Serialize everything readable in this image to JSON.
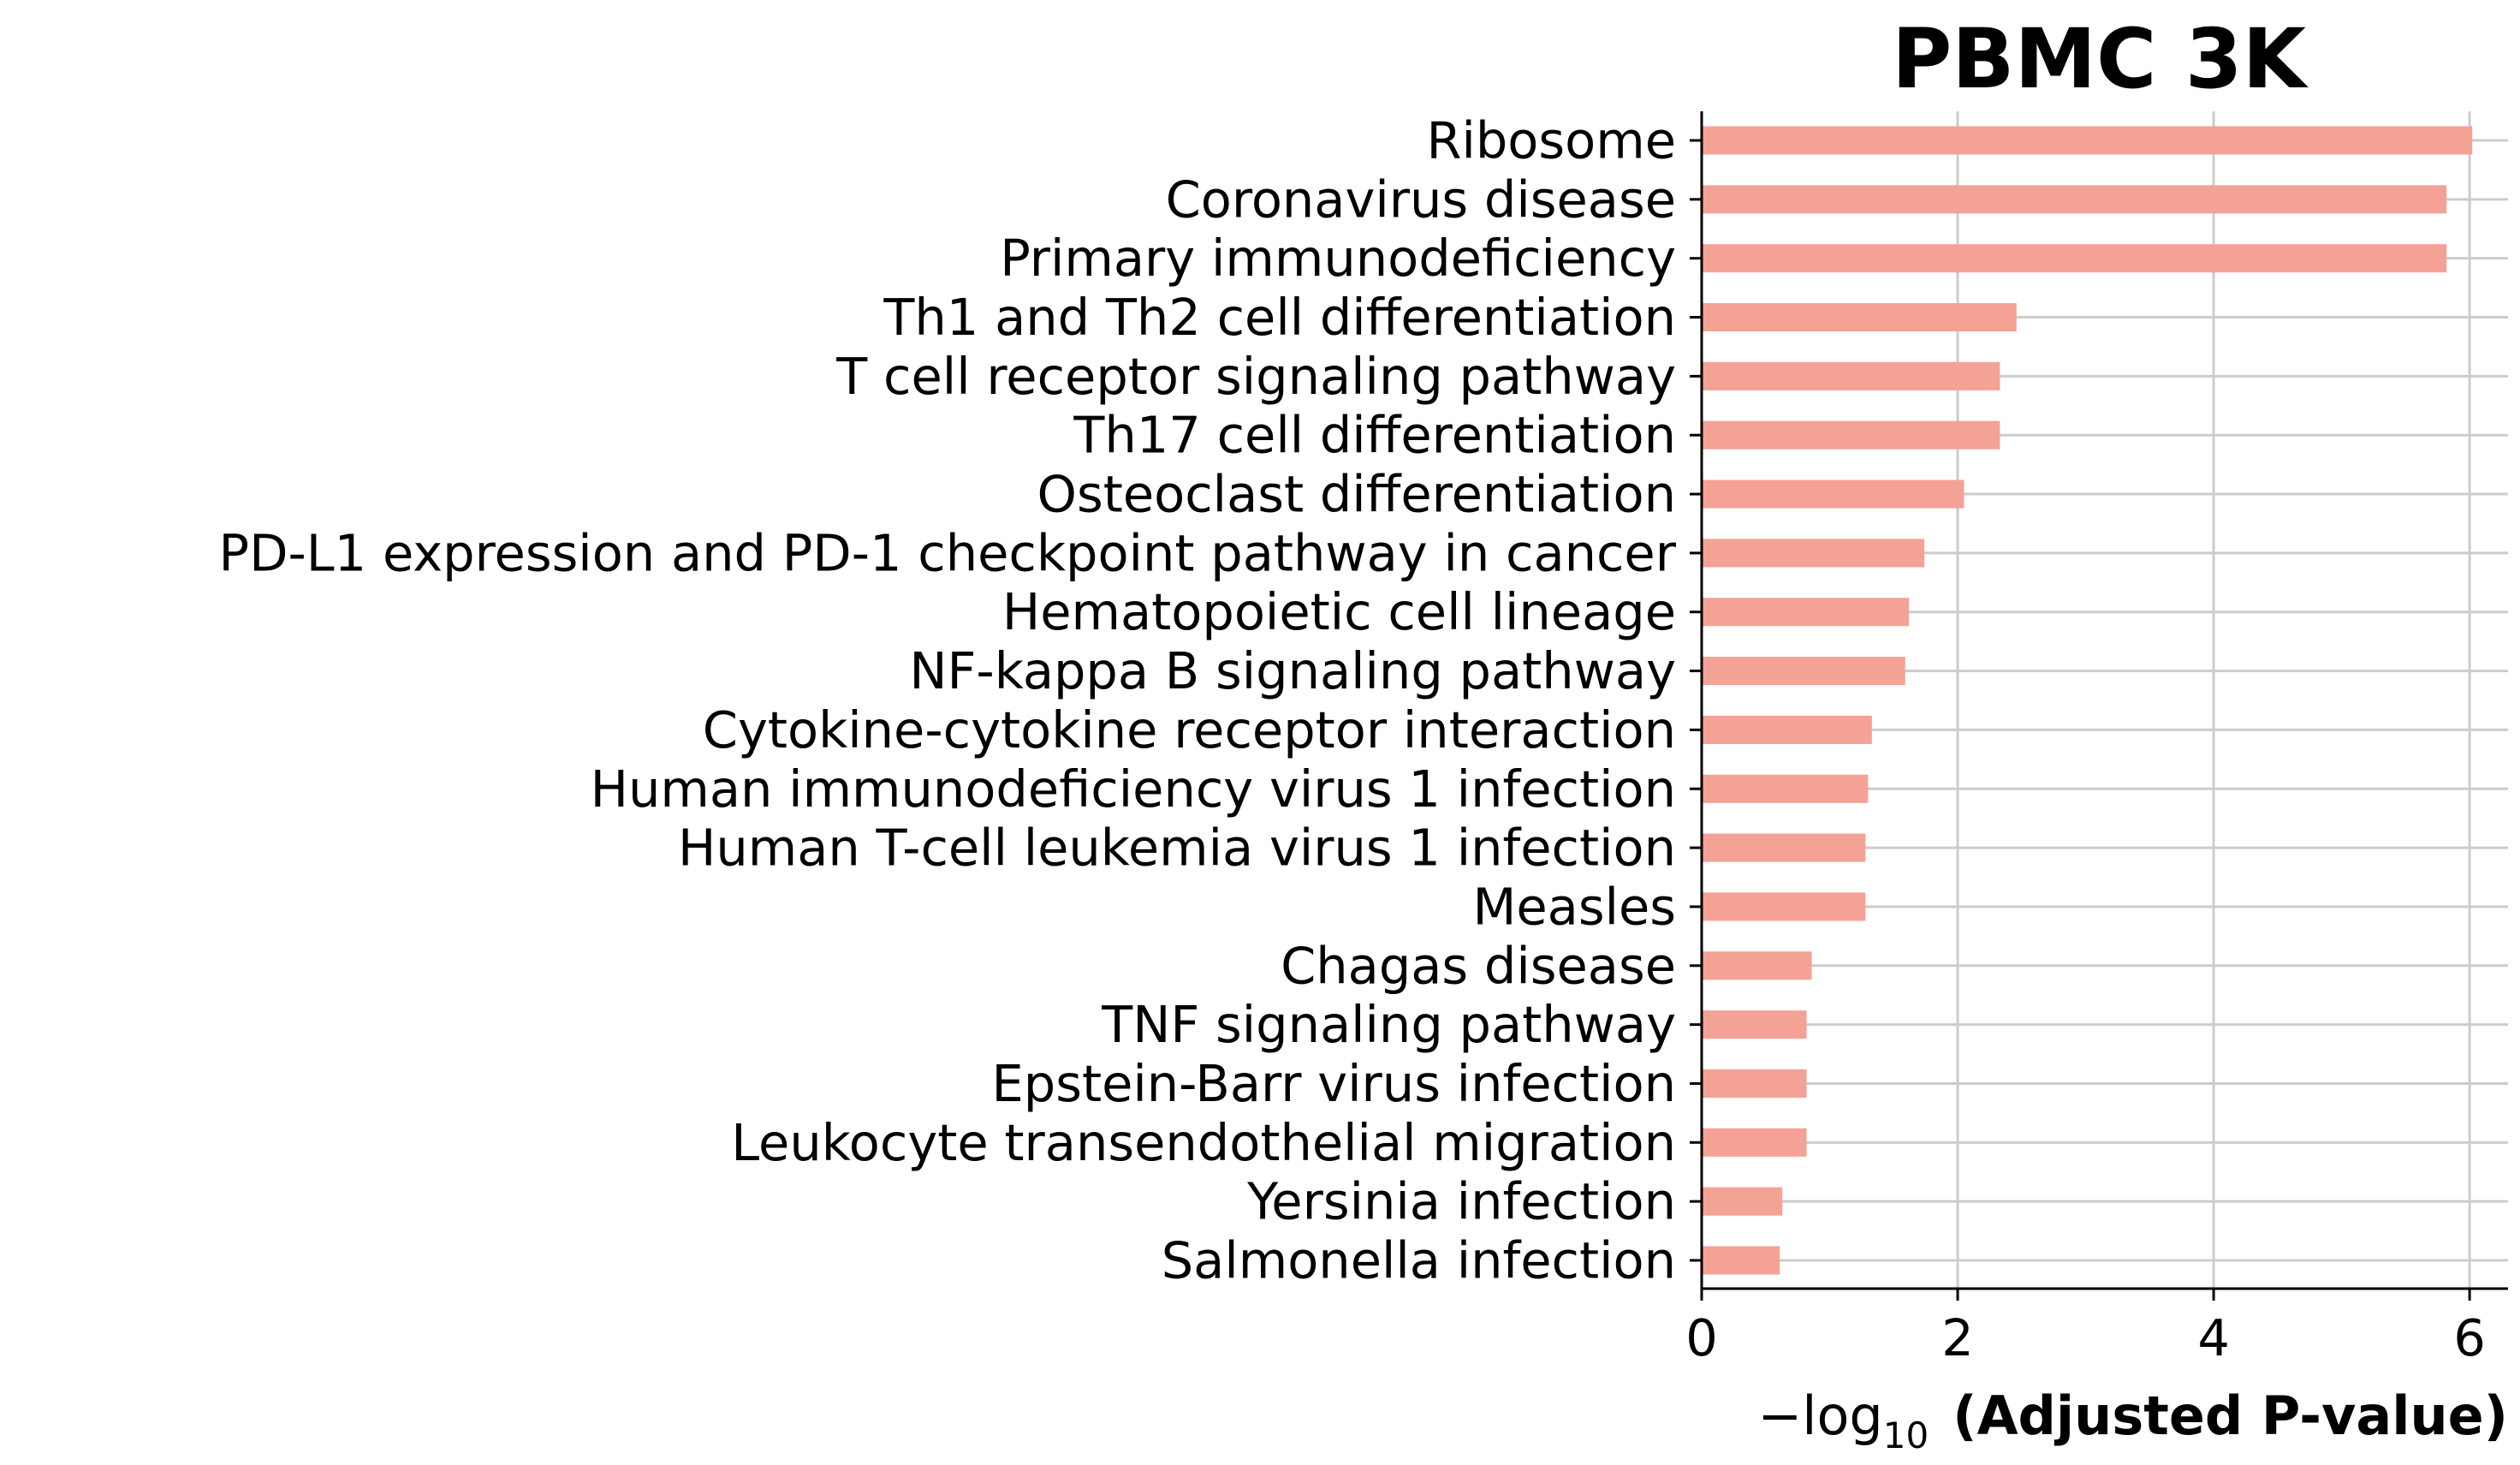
{
  "chart_data": {
    "type": "bar",
    "orientation": "horizontal",
    "title": "PBMC 3K",
    "xlabel_prefix": "−log",
    "xlabel_subscript": "10",
    "xlabel_main": "(Adjusted P-value)",
    "ylabel": "",
    "xlim": [
      0,
      6.3
    ],
    "xticks": [
      0,
      2,
      4,
      6
    ],
    "grid": true,
    "bar_color": "#f4a296",
    "categories": [
      "Ribosome",
      "Coronavirus disease",
      "Primary immunodeficiency",
      "Th1 and Th2 cell differentiation",
      "T cell receptor signaling pathway",
      "Th17 cell differentiation",
      "Osteoclast differentiation",
      "PD-L1 expression and PD-1 checkpoint pathway in cancer",
      "Hematopoietic cell lineage",
      "NF-kappa B signaling pathway",
      "Cytokine-cytokine receptor interaction",
      "Human immunodeficiency virus 1 infection",
      "Human T-cell leukemia virus 1 infection",
      "Measles",
      "Chagas disease",
      "TNF signaling pathway",
      "Epstein-Barr virus infection",
      "Leukocyte transendothelial migration",
      "Yersinia infection",
      "Salmonella infection"
    ],
    "values": [
      6.02,
      5.82,
      5.82,
      2.46,
      2.33,
      2.33,
      2.05,
      1.74,
      1.62,
      1.59,
      1.33,
      1.3,
      1.28,
      1.28,
      0.86,
      0.82,
      0.82,
      0.82,
      0.63,
      0.61
    ]
  }
}
